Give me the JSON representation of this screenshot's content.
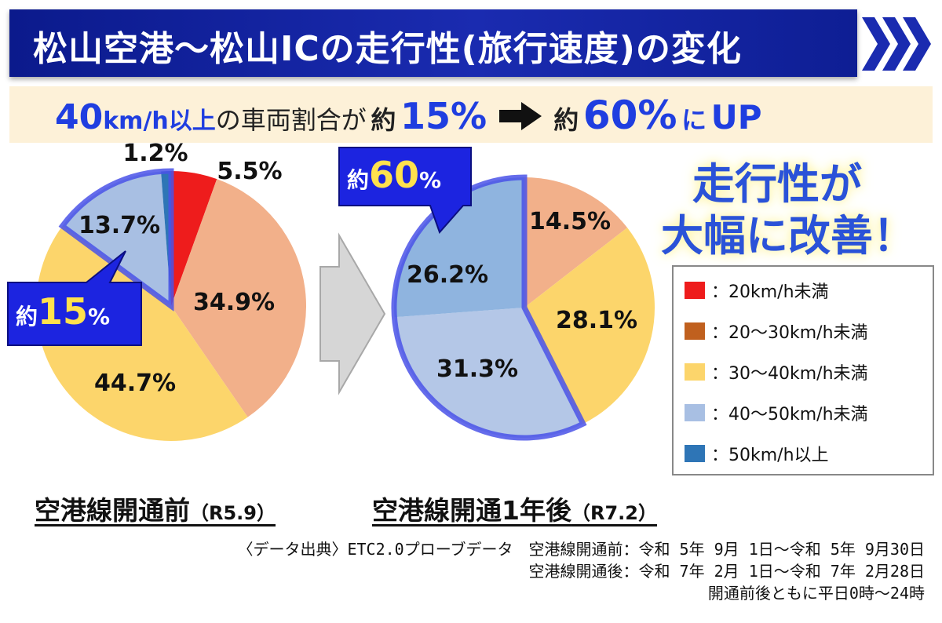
{
  "header": {
    "title": "松山空港～松山ICの走行性(旅行速度)の変化"
  },
  "subheadline": {
    "part1": "40",
    "part2": "km/h以上",
    "part3": "の車両割合が",
    "approx1": "約",
    "value1": "15%",
    "approx2": "約",
    "value2": "60%",
    "part4": "に",
    "up": "UP"
  },
  "big_message": {
    "line1": "走行性が",
    "line2": "大幅に改善！"
  },
  "callouts": {
    "before": {
      "approx": "約",
      "num": "15",
      "pct": "%"
    },
    "after": {
      "approx": "約",
      "num": "60",
      "pct": "%"
    }
  },
  "labels": {
    "before": {
      "main": "空港線開通前",
      "date": "（R5.9）"
    },
    "after": {
      "main": "空港線開通1年後",
      "date": "（R7.2）"
    }
  },
  "source_note": {
    "line1": "〈データ出典〉ETC2.0プローブデータ　空港線開通前：令和 5年 9月 1日～令和 5年 9月30日",
    "line2": "空港線開通後：令和 7年 2月 1日～令和 7年 2月28日",
    "line3": "開通前後ともに平日0時～24時"
  },
  "legend": [
    {
      "label": "：20km/h未満",
      "color": "#ee1c1c"
    },
    {
      "label": "：20～30km/h未満",
      "color": "#c0601e"
    },
    {
      "label": "：30～40km/h未満",
      "color": "#fcd56b"
    },
    {
      "label": "：40～50km/h未満",
      "color": "#a8bfe3"
    },
    {
      "label": "：50km/h以上",
      "color": "#2e75b6"
    }
  ],
  "chart_data": [
    {
      "type": "pie",
      "title": "空港線開通前（R5.9）",
      "categories": [
        "20km/h未満",
        "20～30km/h未満",
        "30～40km/h未満",
        "40～50km/h未満",
        "50km/h以上"
      ],
      "values": [
        5.5,
        34.9,
        44.7,
        13.7,
        1.2
      ],
      "value_labels": [
        "5.5%",
        "34.9%",
        "44.7%",
        "13.7%",
        "1.2%"
      ],
      "colors": [
        "#ee1c1c",
        "#f2b08a",
        "#fcd56b",
        "#a8bfe3",
        "#2e75b6"
      ]
    },
    {
      "type": "pie",
      "title": "空港線開通1年後（R7.2）",
      "categories": [
        "20～30km/h未満",
        "30～40km/h未満",
        "40～50km/h未満",
        "50km/h以上"
      ],
      "values": [
        14.5,
        28.1,
        31.3,
        26.2
      ],
      "value_labels": [
        "14.5%",
        "28.1%",
        "31.3%",
        "26.2%"
      ],
      "colors": [
        "#f2b08a",
        "#fcd56b",
        "#b4c7e7",
        "#8fb4df"
      ]
    }
  ]
}
